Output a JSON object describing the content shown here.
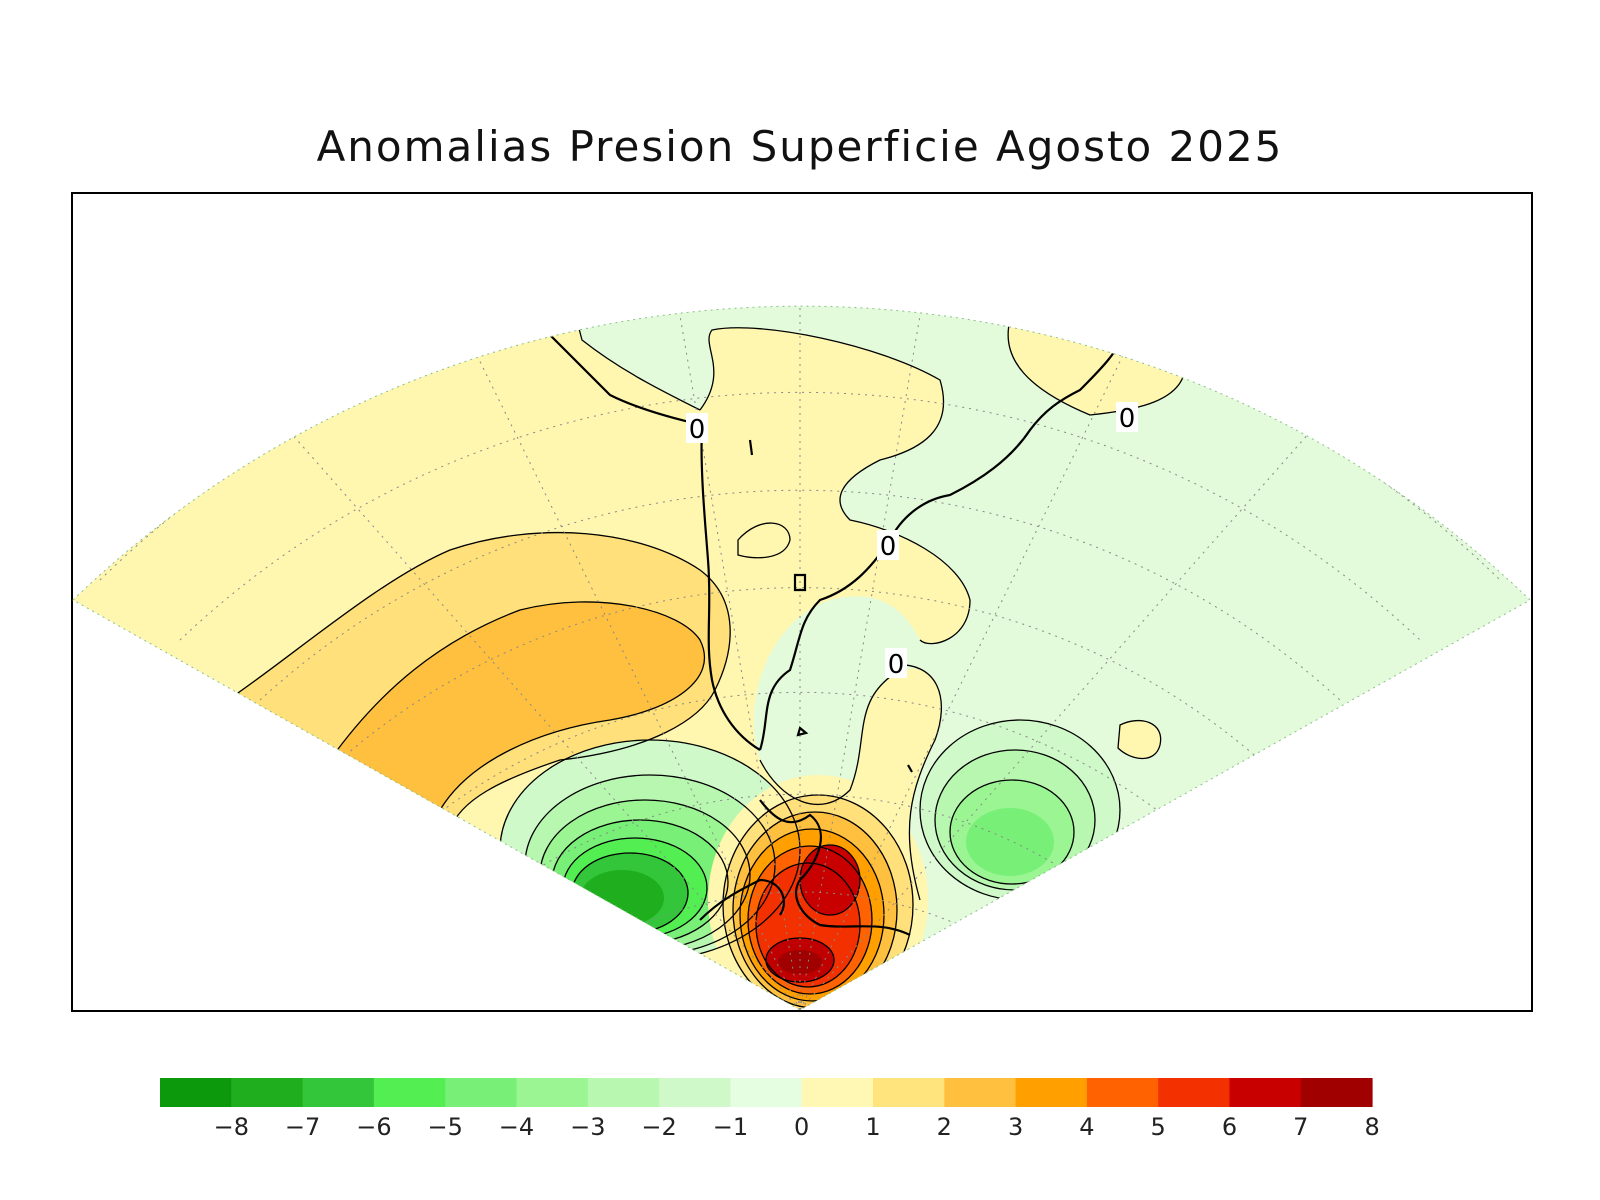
{
  "title": "Anomalias Presion Superficie Agosto 2025",
  "map": {
    "projection": "conic sector, South America and adjacent oceans",
    "contour_labels": [
      "0",
      "0",
      "0",
      "0"
    ]
  },
  "legend": {
    "ticks": [
      "−8",
      "−7",
      "−6",
      "−5",
      "−4",
      "−3",
      "−2",
      "−1",
      "0",
      "1",
      "2",
      "3",
      "4",
      "5",
      "6",
      "7",
      "8"
    ],
    "colors": [
      "#0c9a0c",
      "#1eae1e",
      "#33c63a",
      "#52ee52",
      "#78f078",
      "#9af592",
      "#b8f7b0",
      "#cff9c8",
      "#e5fde0",
      "#fff8b4",
      "#ffe47e",
      "#ffc040",
      "#ff9f00",
      "#ff6200",
      "#f23000",
      "#c80000",
      "#a00000"
    ]
  },
  "colors": {
    "neg_weak": "#e3fbdb",
    "pos_weak": "#fff6b0",
    "pos_2": "#ffe07a",
    "pos_3": "#ffc040",
    "neg_peak": "#1eae1e",
    "pos_peak": "#c00000"
  }
}
